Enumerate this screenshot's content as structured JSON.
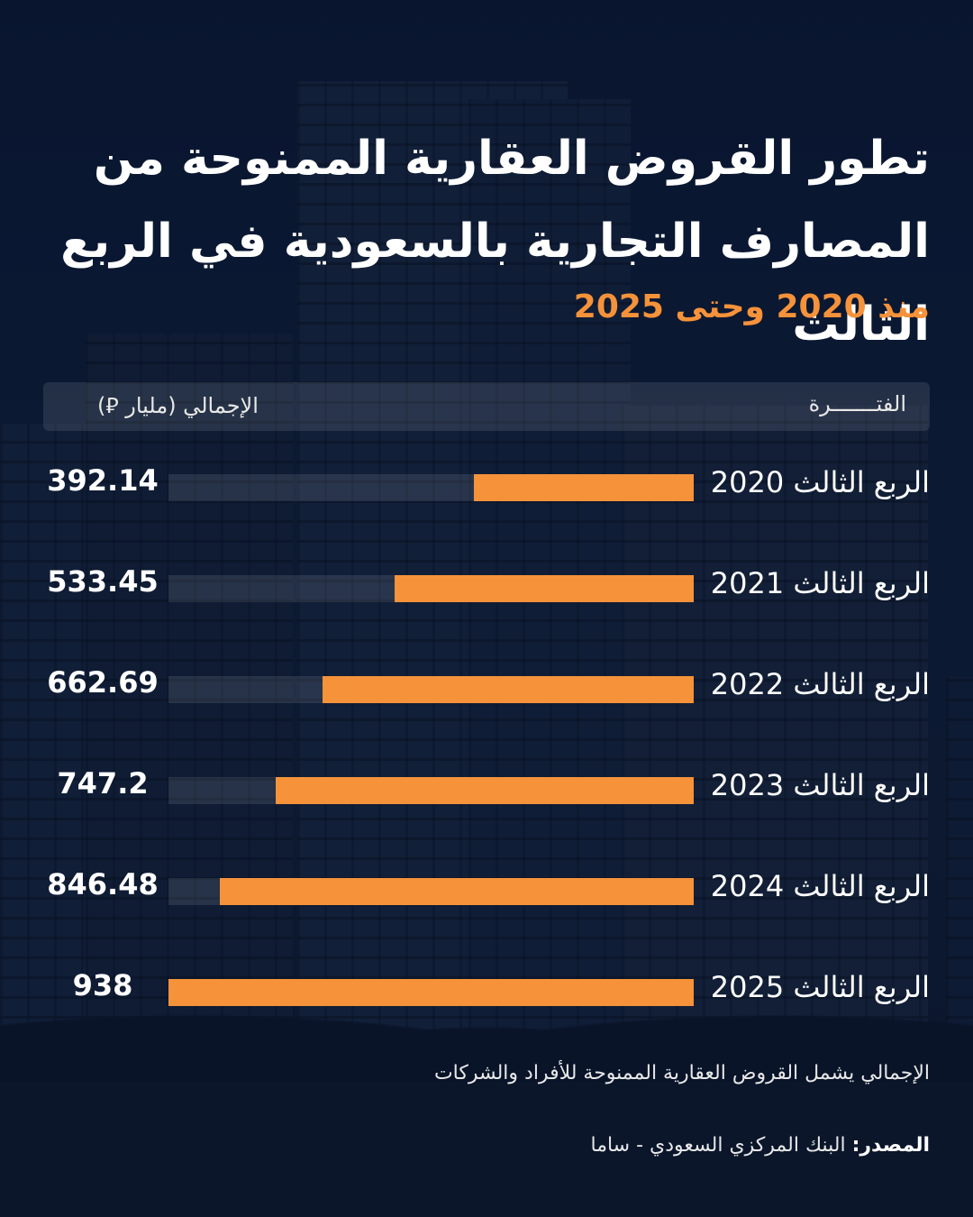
{
  "title": "تطور القروض العقارية الممنوحة من المصارف التجارية بالسعودية في الربع الثالث",
  "subtitle": "منذ 2020 وحتى 2025",
  "header": {
    "period_label": "الفتـــــــرة",
    "total_label": "الإجمالي (مليار ⃁)"
  },
  "colors": {
    "accent": "#f5923a",
    "background": "#0d1a33",
    "text": "#ffffff"
  },
  "chart_data": {
    "type": "bar",
    "orientation": "horizontal",
    "categories": [
      "الربع الثالث 2020",
      "الربع الثالث 2021",
      "الربع الثالث 2022",
      "الربع الثالث 2023",
      "الربع الثالث 2024",
      "الربع الثالث 2025"
    ],
    "values": [
      392.14,
      533.45,
      662.69,
      747.2,
      846.48,
      938
    ],
    "value_labels": [
      "392.14",
      "533.45",
      "662.69",
      "747.2",
      "846.48",
      "938"
    ],
    "xlim": [
      0,
      938
    ]
  },
  "note": "الإجمالي يشمل القروض العقارية الممنوحة للأفراد والشركات",
  "source": {
    "label": "المصدر:",
    "text": " البنك المركزي السعودي - ساما"
  }
}
